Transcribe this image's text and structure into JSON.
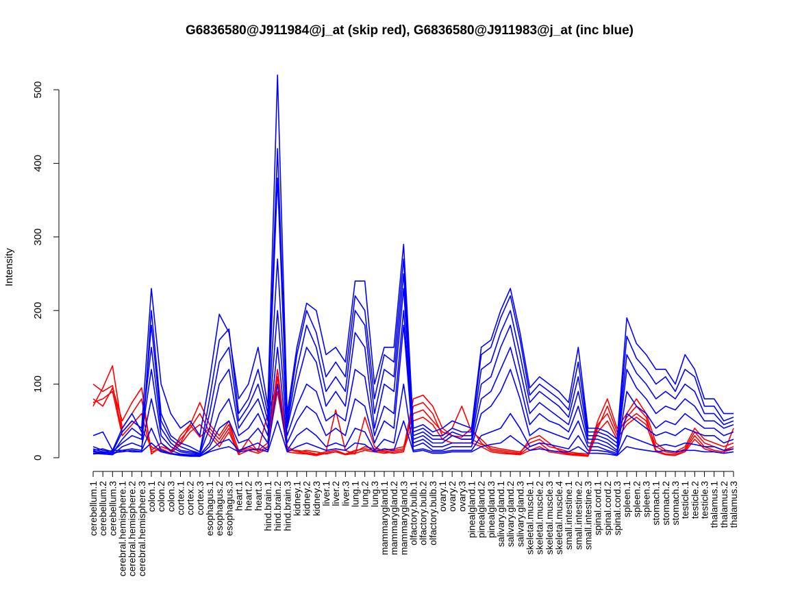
{
  "chart_data": {
    "type": "line",
    "title": "G6836580@J911984@j_at (skip red), G6836580@J911983@j_at (inc blue)",
    "ylabel": "Intensity",
    "xlabel": "",
    "ylim": [
      0,
      520
    ],
    "yticks": [
      0,
      100,
      200,
      300,
      400,
      500
    ],
    "grid": false,
    "categories": [
      "cerebellum.1",
      "cerebellum.2",
      "cerebellum.3",
      "cerebral.hemisphere.1",
      "cerebral.hemisphere.2",
      "cerebral.hemisphere.3",
      "colon.1",
      "colon.2",
      "colon.3",
      "cortex.1",
      "cortex.2",
      "cortex.3",
      "esophagus.1",
      "esophagus.2",
      "esophagus.3",
      "heart.1",
      "heart.2",
      "heart.3",
      "hind.brain.1",
      "hind.brain.2",
      "hind.brain.3",
      "kidney.1",
      "kidney.2",
      "kidney.3",
      "liver.1",
      "liver.2",
      "liver.3",
      "lung.1",
      "lung.2",
      "lung.3",
      "mammarygland.1",
      "mammarygland.2",
      "mammarygland.3",
      "olfactory.bulb.1",
      "olfactory.bulb.2",
      "olfactory.bulb.3",
      "ovary.1",
      "ovary.2",
      "ovary.3",
      "pinealgland.1",
      "pinealgland.2",
      "pinealgland.3",
      "salivary.gland.1",
      "salivary.gland.2",
      "salivary.gland.3",
      "skeletal.muscle.1",
      "skeletal.muscle.2",
      "skeletal.muscle.3",
      "skeletal.muscle.4",
      "small.intestine.1",
      "small.intestine.2",
      "small.intestine.3",
      "spinal.cord.1",
      "spinal.cord.2",
      "spinal.cord.3",
      "spleen.1",
      "spleen.2",
      "spleen.3",
      "stomach.1",
      "stomach.2",
      "stomach.3",
      "testicle.1",
      "testicle.2",
      "testicle.3",
      "thalamus.1",
      "thalamus.2",
      "thalamus.3"
    ],
    "series": [
      {
        "group": "skip",
        "color": "#ff0000",
        "values": [
          100,
          90,
          98,
          35,
          50,
          40,
          15,
          8,
          5,
          30,
          45,
          28,
          40,
          25,
          45,
          10,
          12,
          10,
          20,
          120,
          15,
          8,
          10,
          8,
          5,
          8,
          5,
          10,
          12,
          10,
          8,
          10,
          12,
          80,
          85,
          70,
          40,
          30,
          25,
          25,
          18,
          15,
          12,
          10,
          8,
          20,
          25,
          15,
          12,
          8,
          6,
          5,
          50,
          80,
          40,
          60,
          80,
          60,
          20,
          10,
          8,
          15,
          40,
          25,
          20,
          15,
          20
        ]
      },
      {
        "group": "skip",
        "color": "#ff0000",
        "values": [
          80,
          70,
          95,
          50,
          75,
          95,
          5,
          15,
          10,
          20,
          45,
          75,
          45,
          30,
          50,
          8,
          15,
          10,
          60,
          100,
          10,
          10,
          8,
          5,
          8,
          10,
          5,
          8,
          15,
          12,
          10,
          12,
          15,
          60,
          65,
          50,
          35,
          30,
          28,
          40,
          20,
          10,
          8,
          6,
          5,
          15,
          20,
          10,
          8,
          5,
          5,
          5,
          40,
          70,
          35,
          50,
          60,
          50,
          15,
          8,
          6,
          12,
          35,
          20,
          15,
          10,
          15
        ]
      },
      {
        "group": "skip",
        "color": "#ff0000",
        "values": [
          70,
          95,
          125,
          40,
          60,
          80,
          10,
          20,
          8,
          25,
          40,
          60,
          35,
          20,
          40,
          5,
          25,
          8,
          15,
          90,
          12,
          8,
          6,
          4,
          8,
          65,
          10,
          5,
          55,
          15,
          8,
          6,
          8,
          70,
          75,
          60,
          30,
          40,
          70,
          35,
          25,
          12,
          10,
          8,
          6,
          25,
          30,
          20,
          10,
          6,
          4,
          3,
          45,
          60,
          30,
          55,
          70,
          55,
          10,
          5,
          4,
          10,
          30,
          15,
          10,
          8,
          12
        ]
      },
      {
        "group": "skip",
        "color": "#ff0000",
        "values": [
          75,
          80,
          90,
          30,
          45,
          60,
          8,
          12,
          6,
          18,
          35,
          45,
          30,
          15,
          35,
          4,
          10,
          6,
          12,
          110,
          8,
          6,
          5,
          3,
          6,
          8,
          4,
          6,
          10,
          8,
          6,
          8,
          10,
          50,
          55,
          45,
          25,
          20,
          20,
          20,
          15,
          8,
          6,
          5,
          4,
          10,
          15,
          8,
          6,
          4,
          3,
          2,
          35,
          50,
          25,
          45,
          55,
          45,
          8,
          4,
          3,
          8,
          25,
          12,
          8,
          6,
          40
        ]
      },
      {
        "group": "inc",
        "color": "#0000ff",
        "values": [
          10,
          12,
          8,
          35,
          50,
          40,
          230,
          100,
          60,
          40,
          50,
          30,
          105,
          195,
          170,
          80,
          100,
          150,
          70,
          520,
          60,
          150,
          210,
          200,
          140,
          150,
          130,
          240,
          240,
          100,
          150,
          150,
          290,
          40,
          45,
          35,
          40,
          50,
          45,
          40,
          150,
          160,
          200,
          230,
          170,
          95,
          110,
          100,
          90,
          75,
          150,
          40,
          40,
          35,
          25,
          190,
          155,
          140,
          120,
          120,
          100,
          140,
          120,
          80,
          80,
          60,
          60
        ]
      },
      {
        "group": "inc",
        "color": "#0000ff",
        "values": [
          30,
          35,
          10,
          10,
          8,
          8,
          200,
          60,
          30,
          20,
          15,
          8,
          80,
          160,
          175,
          60,
          80,
          120,
          60,
          420,
          50,
          140,
          200,
          170,
          110,
          130,
          110,
          220,
          200,
          80,
          140,
          130,
          270,
          35,
          40,
          30,
          30,
          40,
          35,
          35,
          140,
          150,
          190,
          220,
          160,
          85,
          100,
          90,
          80,
          65,
          130,
          35,
          35,
          30,
          20,
          165,
          135,
          120,
          100,
          110,
          90,
          120,
          110,
          70,
          70,
          50,
          55
        ]
      },
      {
        "group": "inc",
        "color": "#0000ff",
        "values": [
          15,
          10,
          8,
          20,
          30,
          25,
          180,
          50,
          25,
          15,
          10,
          6,
          60,
          130,
          150,
          50,
          70,
          100,
          50,
          380,
          45,
          120,
          180,
          150,
          90,
          110,
          90,
          200,
          180,
          60,
          120,
          110,
          250,
          30,
          35,
          25,
          25,
          35,
          30,
          30,
          120,
          130,
          170,
          200,
          140,
          75,
          90,
          80,
          70,
          55,
          110,
          30,
          30,
          25,
          15,
          140,
          115,
          100,
          80,
          90,
          80,
          100,
          90,
          60,
          60,
          45,
          50
        ]
      },
      {
        "group": "inc",
        "color": "#0000ff",
        "values": [
          8,
          6,
          10,
          40,
          60,
          35,
          150,
          40,
          20,
          10,
          8,
          5,
          40,
          100,
          120,
          40,
          60,
          80,
          40,
          270,
          40,
          100,
          150,
          130,
          70,
          90,
          70,
          170,
          150,
          40,
          100,
          90,
          230,
          25,
          30,
          20,
          20,
          30,
          25,
          25,
          100,
          110,
          150,
          180,
          120,
          60,
          75,
          65,
          55,
          45,
          90,
          25,
          25,
          20,
          10,
          120,
          95,
          80,
          60,
          70,
          65,
          80,
          70,
          50,
          50,
          40,
          45
        ]
      },
      {
        "group": "inc",
        "color": "#0000ff",
        "values": [
          12,
          8,
          6,
          25,
          40,
          30,
          120,
          30,
          15,
          8,
          6,
          4,
          20,
          60,
          80,
          30,
          40,
          60,
          30,
          200,
          30,
          70,
          100,
          90,
          50,
          60,
          50,
          120,
          110,
          30,
          70,
          60,
          200,
          20,
          25,
          15,
          15,
          20,
          20,
          20,
          80,
          90,
          120,
          150,
          100,
          45,
          60,
          50,
          45,
          35,
          70,
          20,
          20,
          15,
          8,
          90,
          70,
          60,
          40,
          50,
          45,
          60,
          50,
          40,
          40,
          30,
          35
        ]
      },
      {
        "group": "inc",
        "color": "#0000ff",
        "values": [
          6,
          5,
          4,
          15,
          20,
          15,
          80,
          20,
          10,
          5,
          4,
          3,
          15,
          40,
          50,
          20,
          25,
          40,
          20,
          150,
          20,
          50,
          70,
          60,
          30,
          40,
          30,
          80,
          70,
          20,
          50,
          40,
          180,
          15,
          20,
          10,
          10,
          15,
          15,
          15,
          60,
          70,
          90,
          120,
          80,
          30,
          40,
          35,
          30,
          25,
          50,
          15,
          15,
          10,
          6,
          60,
          50,
          40,
          30,
          35,
          30,
          40,
          35,
          30,
          30,
          20,
          25
        ]
      },
      {
        "group": "inc",
        "color": "#0000ff",
        "values": [
          9,
          7,
          5,
          10,
          12,
          10,
          40,
          10,
          6,
          4,
          3,
          2,
          10,
          20,
          25,
          10,
          15,
          20,
          10,
          100,
          10,
          30,
          40,
          30,
          15,
          20,
          15,
          40,
          35,
          10,
          25,
          20,
          100,
          10,
          12,
          8,
          8,
          10,
          10,
          10,
          30,
          35,
          40,
          60,
          40,
          15,
          20,
          18,
          15,
          12,
          30,
          10,
          10,
          8,
          4,
          30,
          25,
          20,
          15,
          18,
          15,
          20,
          18,
          15,
          15,
          10,
          12
        ]
      },
      {
        "group": "inc",
        "color": "#0000ff",
        "values": [
          5,
          6,
          7,
          8,
          10,
          8,
          20,
          8,
          5,
          3,
          2,
          2,
          8,
          12,
          15,
          8,
          10,
          12,
          8,
          50,
          8,
          15,
          20,
          15,
          10,
          12,
          10,
          20,
          18,
          8,
          12,
          10,
          50,
          8,
          10,
          6,
          6,
          8,
          8,
          8,
          15,
          18,
          20,
          30,
          20,
          10,
          12,
          10,
          8,
          8,
          15,
          6,
          6,
          5,
          3,
          15,
          12,
          10,
          8,
          10,
          8,
          10,
          10,
          8,
          8,
          6,
          8
        ]
      }
    ]
  }
}
